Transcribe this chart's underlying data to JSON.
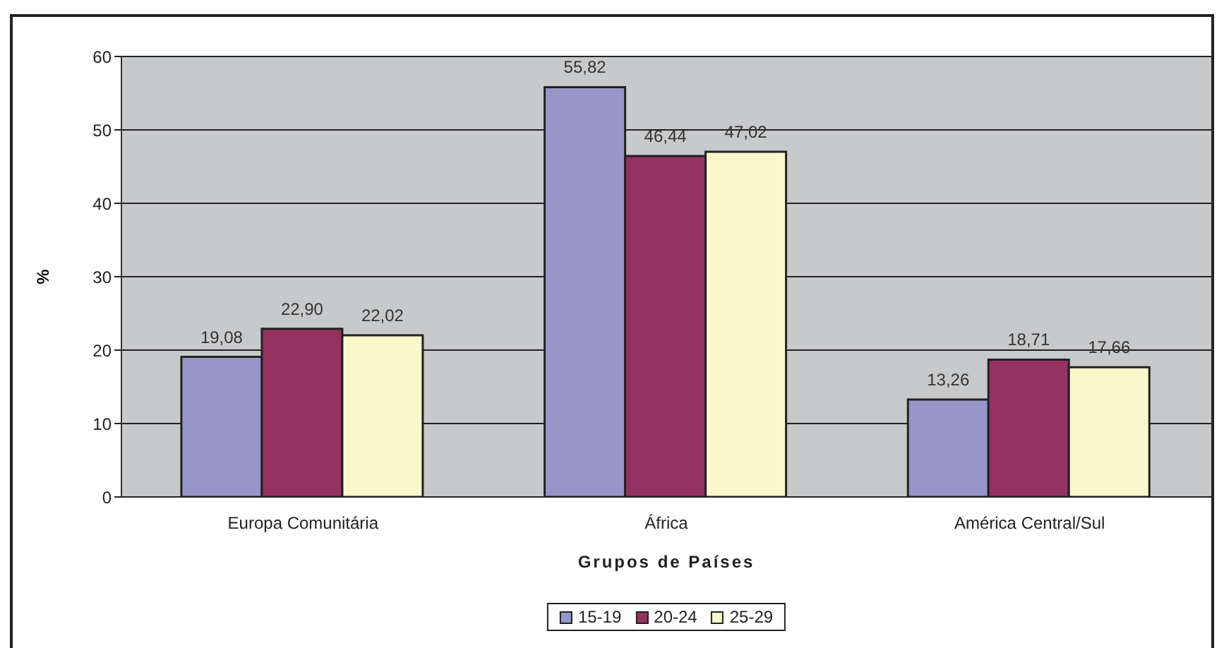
{
  "chart_data": {
    "type": "bar",
    "categories": [
      "Europa Comunitária",
      "África",
      "América Central/Sul"
    ],
    "series": [
      {
        "name": "15-19",
        "color": "#9696c8",
        "values": [
          19.08,
          55.82,
          13.26
        ],
        "value_labels": [
          "19,08",
          "55,82",
          "13,26"
        ]
      },
      {
        "name": "20-24",
        "color": "#943262",
        "values": [
          22.9,
          46.44,
          18.71
        ],
        "value_labels": [
          "22,90",
          "46,44",
          "18,71"
        ]
      },
      {
        "name": "25-29",
        "color": "#fbf8cc",
        "values": [
          22.02,
          47.02,
          17.66
        ],
        "value_labels": [
          "22,02",
          "47,02",
          "17,66"
        ]
      }
    ],
    "xlabel": "Grupos de Países",
    "ylabel": "%",
    "ylim": [
      0,
      60
    ],
    "yticks": [
      0,
      10,
      20,
      30,
      40,
      50,
      60
    ],
    "grid": "y",
    "legend": "bottom"
  }
}
